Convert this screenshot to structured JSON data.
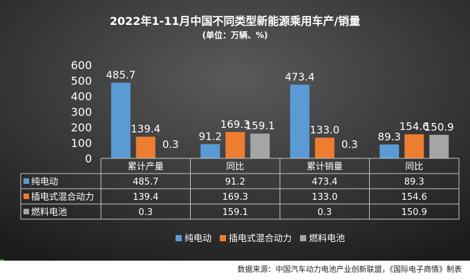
{
  "chart_data": {
    "type": "bar",
    "title": "2022年1-11月中国不同类型新能源乘用车产/销量",
    "subtitle": "(单位：万辆、%)",
    "categories": [
      "累计产量",
      "同比",
      "累计销量",
      "同比"
    ],
    "series": [
      {
        "name": "纯电动",
        "values": [
          485.7,
          91.2,
          473.4,
          89.3
        ],
        "color": "#5b9bd5"
      },
      {
        "name": "插电式混合动力",
        "values": [
          139.4,
          169.3,
          133.0,
          154.6
        ],
        "color": "#ed7d31"
      },
      {
        "name": "燃料电池",
        "values": [
          0.3,
          159.1,
          0.3,
          150.9
        ],
        "color": "#a5a5a5"
      }
    ],
    "ylim": [
      0,
      600
    ],
    "yticks": [
      "0",
      "100",
      "200",
      "300",
      "400",
      "500",
      "600"
    ],
    "data_labels": [
      [
        "485.7",
        "91.2",
        "473.4",
        "89.3"
      ],
      [
        "139.4",
        "169.3",
        "133.0",
        "154.6"
      ],
      [
        "0.3",
        "159.1",
        "0.3",
        "150.9"
      ]
    ],
    "legend_position": "bottom",
    "data_table": true,
    "grid": false
  },
  "source_note": "数据来源：中国汽车动力电池产业创新联盟，《国际电子商情》制表",
  "colors": {
    "background_top": "#4a4a4a",
    "background_bottom": "#1e1e1e",
    "text": "#ffffff",
    "table_border": "#c8c8c8"
  }
}
